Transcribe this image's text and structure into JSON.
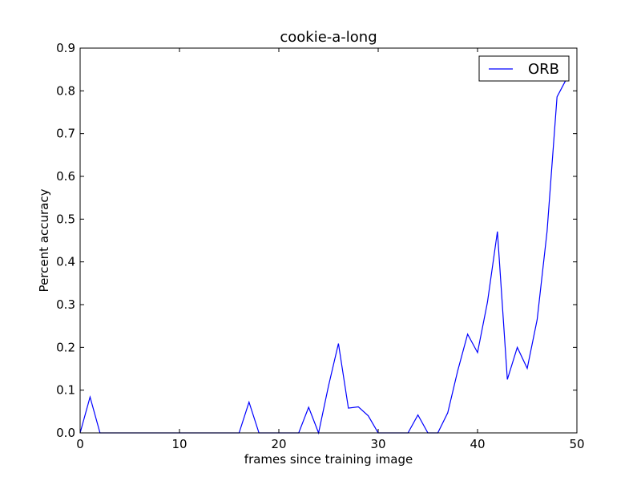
{
  "chart_data": {
    "type": "line",
    "title": "cookie-a-long",
    "xlabel": "frames since training image",
    "ylabel": "Percent accuracy",
    "xlim": [
      0,
      50
    ],
    "ylim": [
      0,
      0.9
    ],
    "xticks": [
      0,
      10,
      20,
      30,
      40,
      50
    ],
    "yticks": [
      0.0,
      0.1,
      0.2,
      0.3,
      0.4,
      0.5,
      0.6,
      0.7,
      0.8,
      0.9
    ],
    "xtick_labels": [
      "0",
      "10",
      "20",
      "30",
      "40",
      "50"
    ],
    "ytick_labels": [
      "0.0",
      "0.1",
      "0.2",
      "0.3",
      "0.4",
      "0.5",
      "0.6",
      "0.7",
      "0.8",
      "0.9"
    ],
    "grid": false,
    "legend_position": "upper-right",
    "series": [
      {
        "name": "ORB",
        "color": "#0000ff",
        "x": [
          0,
          1,
          2,
          3,
          4,
          5,
          6,
          7,
          8,
          9,
          10,
          11,
          12,
          13,
          14,
          15,
          16,
          17,
          18,
          19,
          20,
          21,
          22,
          23,
          24,
          25,
          26,
          27,
          28,
          29,
          30,
          31,
          32,
          33,
          34,
          35,
          36,
          37,
          38,
          39,
          40,
          41,
          42,
          43,
          44,
          45,
          46,
          47,
          48,
          49
        ],
        "y": [
          0.0,
          0.084,
          0.0,
          0.0,
          0.0,
          0.0,
          0.0,
          0.0,
          0.0,
          0.0,
          0.0,
          0.0,
          0.0,
          0.0,
          0.0,
          0.0,
          0.0,
          0.072,
          0.0,
          0.0,
          0.0,
          0.0,
          0.0,
          0.06,
          0.0,
          0.11,
          0.209,
          0.058,
          0.061,
          0.04,
          0.0,
          0.0,
          0.0,
          0.0,
          0.042,
          0.0,
          0.0,
          0.047,
          0.145,
          0.231,
          0.188,
          0.306,
          0.471,
          0.125,
          0.2,
          0.151,
          0.265,
          0.472,
          0.786,
          0.83
        ]
      }
    ]
  }
}
